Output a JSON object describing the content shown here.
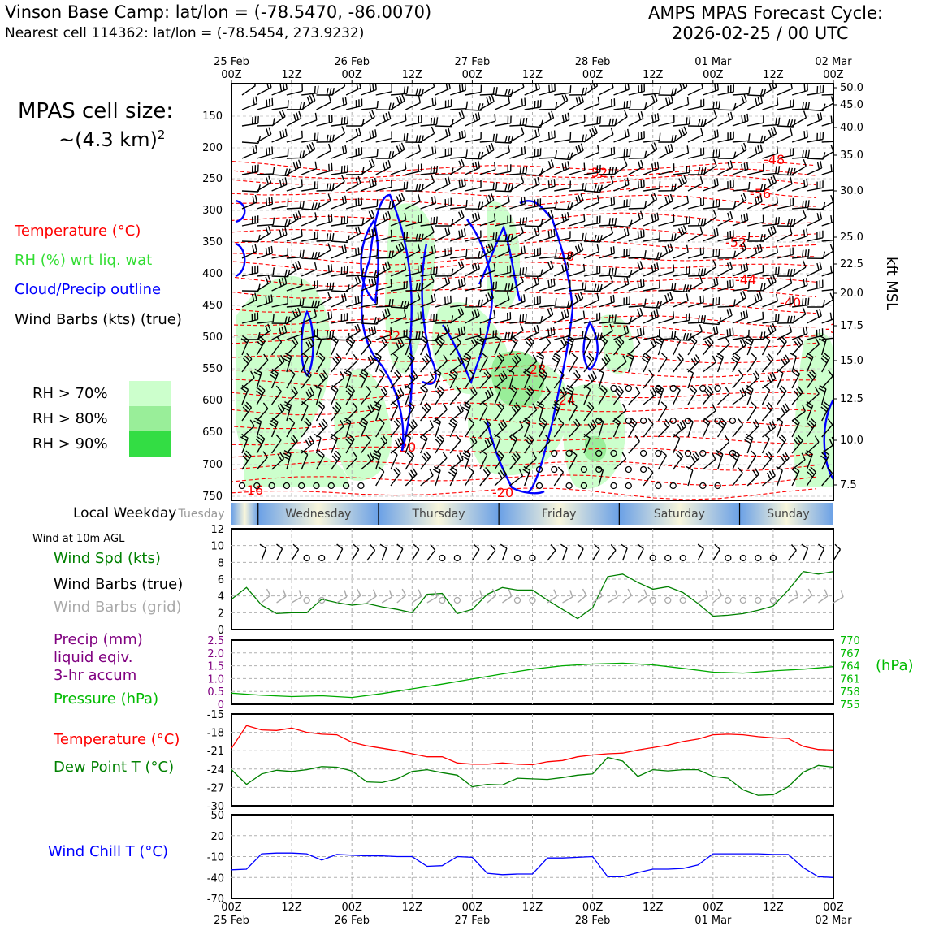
{
  "header": {
    "location_line": "Vinson Base Camp: lat/lon = (-78.5470, -86.0070)",
    "cell_line": "Nearest cell 114362: lat/lon = (-78.5454, 273.9232)",
    "cycle_line1": "AMPS MPAS Forecast Cycle:",
    "cycle_line2": "2026-02-25 / 00 UTC"
  },
  "cell_size": {
    "line1": "MPAS cell size:",
    "line2": "~(4.3 km)",
    "superscript": "2"
  },
  "legend_top": {
    "temperature": "Temperature (°C)",
    "rh": "RH (%) wrt liq. wat",
    "cloud": "Cloud/Precip outline",
    "wind": "Wind Barbs (kts) (true)",
    "rh70": "RH > 70%",
    "rh80": "RH > 80%",
    "rh90": "RH > 90%"
  },
  "colors": {
    "temperature": "#ff0000",
    "rh_label": "#33dd33",
    "cloud": "#0000ff",
    "rh70": "#ccffcc",
    "rh80": "#99ee99",
    "rh90": "#33dd44",
    "precip": "#800080",
    "pressure": "#00aa00",
    "windspd": "#008000",
    "dewpoint": "#008000",
    "windchill": "#0000ff",
    "grid_barbs": "#aaaaaa"
  },
  "time_axis": {
    "top_dates": [
      "25 Feb",
      "26 Feb",
      "27 Feb",
      "28 Feb",
      "01 Mar",
      "02 Mar"
    ],
    "top_hours": [
      "00Z",
      "12Z",
      "00Z",
      "12Z",
      "00Z",
      "12Z",
      "00Z",
      "12Z",
      "00Z",
      "12Z",
      "00Z"
    ],
    "bottom_hours": [
      "00Z",
      "12Z",
      "00Z",
      "12Z",
      "00Z",
      "12Z",
      "00Z",
      "12Z",
      "00Z",
      "12Z",
      "00Z"
    ],
    "bottom_dates": [
      "25 Feb",
      "26 Feb",
      "27 Feb",
      "28 Feb",
      "01 Mar",
      "02 Mar"
    ]
  },
  "pressure_axis": {
    "left_ticks": [
      "150",
      "200",
      "250",
      "300",
      "350",
      "400",
      "450",
      "500",
      "550",
      "600",
      "650",
      "700",
      "750"
    ],
    "right_ticks": [
      "50.0",
      "45.0",
      "40.0",
      "35.0",
      "30.0",
      "25.0",
      "22.5",
      "20.0",
      "17.5",
      "15.0",
      "12.5",
      "10.0",
      "7.5"
    ],
    "right_label": "kft MSL"
  },
  "temp_contour_labels": [
    "-52",
    "-48",
    "-56",
    "-52",
    "-48",
    "-44",
    "-40",
    "-32",
    "-28",
    "-24",
    "-20",
    "-20",
    "-16",
    "-3"
  ],
  "weekday": {
    "label": "Local Weekday",
    "days": [
      "Tuesday",
      "Wednesday",
      "Thursday",
      "Friday",
      "Saturday",
      "Sunday"
    ]
  },
  "panel_wind": {
    "title": "Wind at 10m AGL",
    "label_spd": "Wind Spd (kts)",
    "label_true": "Wind Barbs (true)",
    "label_grid": "Wind Barbs (grid)",
    "yticks": [
      "0",
      "2",
      "4",
      "6",
      "8",
      "10",
      "12"
    ]
  },
  "panel_precip": {
    "label_precip1": "Precip (mm)",
    "label_precip2": "liquid eqiv.",
    "label_precip3": "3-hr accum",
    "label_pressure": "Pressure (hPa)",
    "left_ticks": [
      "0",
      "0.5",
      "1.0",
      "1.5",
      "2.0",
      "2.5"
    ],
    "right_ticks": [
      "755",
      "758",
      "761",
      "764",
      "767",
      "770"
    ],
    "right_unit": "(hPa)"
  },
  "panel_temp": {
    "label_temp": "Temperature (°C)",
    "label_dew": "Dew Point T (°C)",
    "yticks": [
      "-30",
      "-27",
      "-24",
      "-21",
      "-18",
      "-15"
    ]
  },
  "panel_chill": {
    "label": "Wind Chill T (°C)",
    "yticks": [
      "-70",
      "-40",
      "-10",
      "20",
      "50"
    ]
  },
  "chart_data": [
    {
      "type": "line",
      "title": "Wind at 10m AGL - Wind Speed (kts)",
      "x_hours": [
        0,
        3,
        6,
        9,
        12,
        15,
        18,
        21,
        24,
        27,
        30,
        33,
        36,
        39,
        42,
        45,
        48,
        51,
        54,
        57,
        60,
        63,
        66,
        69,
        72,
        75,
        78,
        81,
        84,
        87,
        90,
        93,
        96,
        99,
        102,
        105,
        108,
        111,
        114,
        117,
        120
      ],
      "values": [
        3.6,
        5.0,
        2.9,
        1.9,
        2.0,
        2.0,
        3.6,
        3.2,
        2.9,
        3.1,
        2.7,
        2.4,
        2.0,
        4.2,
        4.3,
        1.9,
        2.4,
        4.2,
        5.0,
        4.7,
        4.7,
        3.5,
        2.4,
        1.3,
        2.6,
        6.3,
        6.6,
        5.6,
        4.8,
        5.1,
        4.4,
        3.1,
        1.6,
        1.7,
        1.9,
        2.3,
        2.8,
        4.7,
        6.9,
        6.6,
        6.9
      ],
      "ylim": [
        0,
        12
      ]
    },
    {
      "type": "line",
      "title": "Pressure (hPa)",
      "x_hours": [
        0,
        6,
        12,
        18,
        24,
        30,
        36,
        42,
        48,
        54,
        60,
        66,
        72,
        78,
        84,
        90,
        96,
        102,
        108,
        114,
        120
      ],
      "values": [
        757.6,
        757.1,
        756.8,
        757.0,
        756.6,
        757.5,
        758.6,
        759.7,
        760.9,
        762.1,
        763.2,
        764.0,
        764.4,
        764.6,
        764.2,
        763.4,
        762.5,
        762.3,
        762.8,
        763.2,
        763.8
      ],
      "ylim": [
        755,
        770
      ]
    },
    {
      "type": "line",
      "title": "Temperature and Dew Point (°C)",
      "x_hours": [
        0,
        3,
        6,
        9,
        12,
        15,
        18,
        21,
        24,
        27,
        30,
        33,
        36,
        39,
        42,
        45,
        48,
        51,
        54,
        57,
        60,
        63,
        66,
        69,
        72,
        75,
        78,
        81,
        84,
        87,
        90,
        93,
        96,
        99,
        102,
        105,
        108,
        111,
        114,
        117,
        120
      ],
      "series": [
        {
          "name": "Temperature",
          "values": [
            -20.6,
            -16.9,
            -17.6,
            -17.7,
            -17.3,
            -18.0,
            -18.3,
            -18.4,
            -19.6,
            -20.2,
            -20.6,
            -21.0,
            -21.5,
            -22.0,
            -22.0,
            -23.0,
            -23.2,
            -23.2,
            -23.0,
            -23.2,
            -23.3,
            -22.8,
            -22.6,
            -22.0,
            -21.7,
            -21.5,
            -21.4,
            -20.9,
            -20.5,
            -20.1,
            -19.5,
            -19.1,
            -18.4,
            -18.3,
            -18.4,
            -18.7,
            -18.9,
            -19.0,
            -20.3,
            -20.8,
            -20.9
          ]
        },
        {
          "name": "Dew Point",
          "values": [
            -24.1,
            -26.5,
            -24.8,
            -24.2,
            -24.4,
            -24.1,
            -23.6,
            -23.7,
            -24.3,
            -26.1,
            -26.2,
            -25.6,
            -24.4,
            -24.1,
            -24.6,
            -25.0,
            -26.9,
            -26.5,
            -26.6,
            -25.5,
            -25.6,
            -25.7,
            -25.4,
            -25.0,
            -24.8,
            -22.1,
            -22.7,
            -25.2,
            -24.1,
            -24.3,
            -24.1,
            -24.1,
            -25.2,
            -25.5,
            -27.4,
            -28.3,
            -28.2,
            -26.9,
            -24.5,
            -23.4,
            -23.7
          ]
        }
      ],
      "ylim": [
        -30,
        -15
      ]
    },
    {
      "type": "line",
      "title": "Wind Chill T (°C)",
      "x_hours": [
        0,
        3,
        6,
        9,
        12,
        15,
        18,
        21,
        24,
        27,
        30,
        33,
        36,
        39,
        42,
        45,
        48,
        51,
        54,
        57,
        60,
        63,
        66,
        69,
        72,
        75,
        78,
        81,
        84,
        87,
        90,
        93,
        96,
        99,
        102,
        105,
        108,
        111,
        114,
        117,
        120
      ],
      "values": [
        -29,
        -28,
        -6,
        -5,
        -5,
        -6,
        -15,
        -7,
        -8,
        -9,
        -9,
        -10,
        -10,
        -24,
        -23,
        -10,
        -11,
        -34,
        -36,
        -35,
        -35,
        -12,
        -12,
        -11,
        -10,
        -39,
        -39,
        -33,
        -28,
        -28,
        -27,
        -22,
        -6,
        -6,
        -6,
        -6,
        -7,
        -7,
        -26,
        -39,
        -40
      ],
      "ylim": [
        -70,
        50
      ]
    }
  ]
}
